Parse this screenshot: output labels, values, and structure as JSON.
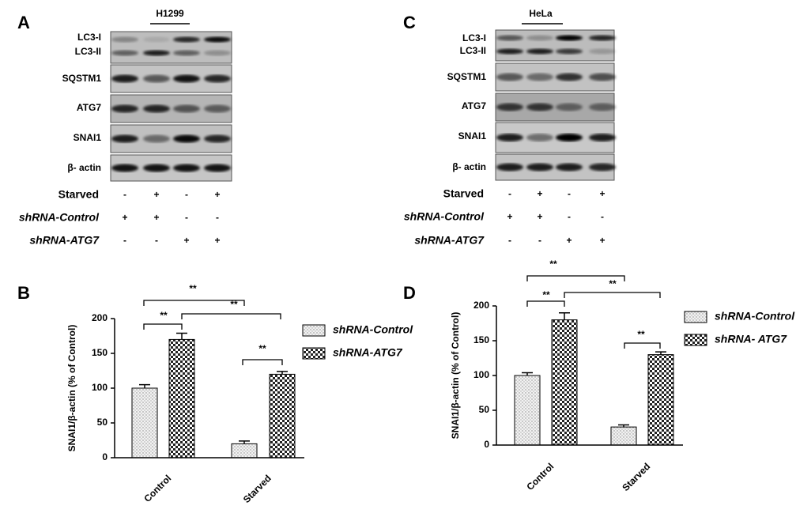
{
  "panels": [
    {
      "label": "A",
      "cell_line": "H1299",
      "rows": [
        "LC3-I",
        "LC3-II",
        "SQSTM1",
        "ATG7",
        "SNAI1",
        "β- actin"
      ],
      "conditions": [
        {
          "name": "Starved",
          "values": [
            "-",
            "+",
            "-",
            "+"
          ]
        },
        {
          "name": "shRNA-Control",
          "values": [
            "+",
            "+",
            "-",
            "-"
          ]
        },
        {
          "name": "shRNA-ATG7",
          "values": [
            "-",
            "-",
            "+",
            "+"
          ]
        }
      ]
    },
    {
      "label": "C",
      "cell_line": "HeLa",
      "rows": [
        "LC3-I",
        "LC3-II",
        "SQSTM1",
        "ATG7",
        "SNAI1",
        "β- actin"
      ],
      "conditions": [
        {
          "name": "Starved",
          "values": [
            "-",
            "+",
            "-",
            "+"
          ]
        },
        {
          "name": "shRNA-Control",
          "values": [
            "+",
            "+",
            "-",
            "-"
          ]
        },
        {
          "name": "shRNA-ATG7",
          "values": [
            "-",
            "-",
            "+",
            "+"
          ]
        }
      ]
    }
  ],
  "chart_data": [
    {
      "type": "bar",
      "panel_label": "B",
      "y_label": "SNAI1/β-actin (% of Control)",
      "categories": [
        "Control",
        "Starved"
      ],
      "series": [
        {
          "name": "shRNA-Control",
          "pattern": "dots",
          "values": [
            100,
            20
          ],
          "errors": [
            5,
            4
          ]
        },
        {
          "name": "shRNA-ATG7",
          "pattern": "checker",
          "values": [
            170,
            120
          ],
          "errors": [
            9,
            4
          ]
        }
      ],
      "ylim": [
        0,
        200
      ],
      "yticks": [
        0,
        50,
        100,
        150,
        200
      ],
      "annotations": [
        "**",
        "**",
        "**",
        "**"
      ]
    },
    {
      "type": "bar",
      "panel_label": "D",
      "y_label": "SNAI1/β-actin (% of Control)",
      "categories": [
        "Control",
        "Starved"
      ],
      "series": [
        {
          "name": "shRNA-Control",
          "pattern": "dots",
          "values": [
            100,
            26
          ],
          "errors": [
            4,
            3
          ]
        },
        {
          "name": "shRNA- ATG7",
          "pattern": "checker",
          "values": [
            180,
            130
          ],
          "errors": [
            10,
            4
          ]
        }
      ],
      "ylim": [
        0,
        200
      ],
      "yticks": [
        0,
        50,
        100,
        150,
        200
      ],
      "annotations": [
        "**",
        "**",
        "**",
        "**"
      ]
    }
  ]
}
